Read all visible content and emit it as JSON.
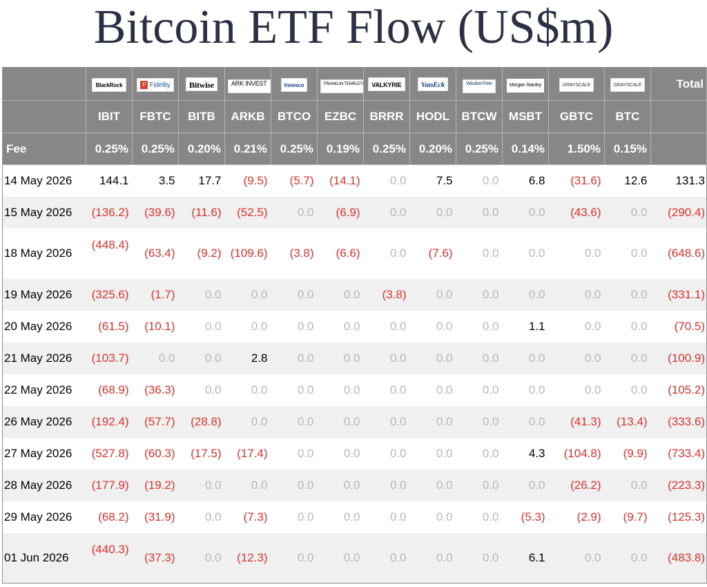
{
  "title": "Bitcoin ETF Flow (US$m)",
  "colors": {
    "negative": "#e0322d",
    "zero": "#b8b8b8",
    "header_bg": "#878787",
    "title": "#2b3042"
  },
  "header": {
    "total_label": "Total",
    "fee_label": "Fee",
    "issuers": [
      {
        "logo": "BlackRock",
        "icon": "blackrock-logo",
        "ticker": "IBIT",
        "fee": "0.25%"
      },
      {
        "logo": "Fidelity",
        "icon": "fidelity-logo",
        "ticker": "FBTC",
        "fee": "0.25%"
      },
      {
        "logo": "Bitwise",
        "icon": "bitwise-logo",
        "ticker": "BITB",
        "fee": "0.20%"
      },
      {
        "logo": "ARK INVEST",
        "icon": "ark-logo",
        "ticker": "ARKB",
        "fee": "0.21%"
      },
      {
        "logo": "Invesco",
        "icon": "invesco-logo",
        "ticker": "BTCO",
        "fee": "0.25%"
      },
      {
        "logo": "FRANKLIN TEMPLETON",
        "icon": "franklin-templeton-logo",
        "ticker": "EZBC",
        "fee": "0.19%"
      },
      {
        "logo": "VALKYRIE",
        "icon": "valkyrie-logo",
        "ticker": "BRRR",
        "fee": "0.25%"
      },
      {
        "logo": "VanEck",
        "icon": "vaneck-logo",
        "ticker": "HODL",
        "fee": "0.20%"
      },
      {
        "logo": "WisdomTree",
        "icon": "wisdomtree-logo",
        "ticker": "BTCW",
        "fee": "0.25%"
      },
      {
        "logo": "Morgan Stanley",
        "icon": "morgan-stanley-logo",
        "ticker": "MSBT",
        "fee": "0.14%"
      },
      {
        "logo": "GRAYSCALE",
        "icon": "grayscale-logo",
        "ticker": "GBTC",
        "fee": "1.50%"
      },
      {
        "logo": "GRAYSCALE",
        "icon": "grayscale-logo",
        "ticker": "BTC",
        "fee": "0.15%"
      }
    ]
  },
  "rows": [
    {
      "date": "14 May 2026",
      "values": [
        "144.1",
        "3.5",
        "17.7",
        "(9.5)",
        "(5.7)",
        "(14.1)",
        "0.0",
        "7.5",
        "0.0",
        "6.8",
        "(31.6)",
        "12.6"
      ],
      "total": "131.3"
    },
    {
      "date": "15 May 2026",
      "values": [
        "(136.2)",
        "(39.6)",
        "(11.6)",
        "(52.5)",
        "0.0",
        "(6.9)",
        "0.0",
        "0.0",
        "0.0",
        "0.0",
        "(43.6)",
        "0.0"
      ],
      "total": "(290.4)"
    },
    {
      "date": "18 May 2026",
      "values": [
        "(448.4)",
        "(63.4)",
        "(9.2)",
        "(109.6)",
        "(3.8)",
        "(6.6)",
        "0.0",
        "(7.6)",
        "0.0",
        "0.0",
        "0.0",
        "0.0"
      ],
      "total": "(648.6)"
    },
    {
      "date": "19 May 2026",
      "values": [
        "(325.6)",
        "(1.7)",
        "0.0",
        "0.0",
        "0.0",
        "0.0",
        "(3.8)",
        "0.0",
        "0.0",
        "0.0",
        "0.0",
        "0.0"
      ],
      "total": "(331.1)"
    },
    {
      "date": "20 May 2026",
      "values": [
        "(61.5)",
        "(10.1)",
        "0.0",
        "0.0",
        "0.0",
        "0.0",
        "0.0",
        "0.0",
        "0.0",
        "1.1",
        "0.0",
        "0.0"
      ],
      "total": "(70.5)"
    },
    {
      "date": "21 May 2026",
      "values": [
        "(103.7)",
        "0.0",
        "0.0",
        "2.8",
        "0.0",
        "0.0",
        "0.0",
        "0.0",
        "0.0",
        "0.0",
        "0.0",
        "0.0"
      ],
      "total": "(100.9)"
    },
    {
      "date": "22 May 2026",
      "values": [
        "(68.9)",
        "(36.3)",
        "0.0",
        "0.0",
        "0.0",
        "0.0",
        "0.0",
        "0.0",
        "0.0",
        "0.0",
        "0.0",
        "0.0"
      ],
      "total": "(105.2)"
    },
    {
      "date": "26 May 2026",
      "values": [
        "(192.4)",
        "(57.7)",
        "(28.8)",
        "0.0",
        "0.0",
        "0.0",
        "0.0",
        "0.0",
        "0.0",
        "0.0",
        "(41.3)",
        "(13.4)"
      ],
      "total": "(333.6)"
    },
    {
      "date": "27 May 2026",
      "values": [
        "(527.8)",
        "(60.3)",
        "(17.5)",
        "(17.4)",
        "0.0",
        "0.0",
        "0.0",
        "0.0",
        "0.0",
        "4.3",
        "(104.8)",
        "(9.9)"
      ],
      "total": "(733.4)"
    },
    {
      "date": "28 May 2026",
      "values": [
        "(177.9)",
        "(19.2)",
        "0.0",
        "0.0",
        "0.0",
        "0.0",
        "0.0",
        "0.0",
        "0.0",
        "0.0",
        "(26.2)",
        "0.0"
      ],
      "total": "(223.3)"
    },
    {
      "date": "29 May 2026",
      "values": [
        "(68.2)",
        "(31.9)",
        "0.0",
        "(7.3)",
        "0.0",
        "0.0",
        "0.0",
        "0.0",
        "0.0",
        "(5.3)",
        "(2.9)",
        "(9.7)"
      ],
      "total": "(125.3)"
    },
    {
      "date": "01 Jun 2026",
      "values": [
        "(440.3)",
        "(37.3)",
        "0.0",
        "(12.3)",
        "0.0",
        "0.0",
        "0.0",
        "0.0",
        "0.0",
        "6.1",
        "0.0",
        "0.0"
      ],
      "total": "(483.8)"
    }
  ]
}
